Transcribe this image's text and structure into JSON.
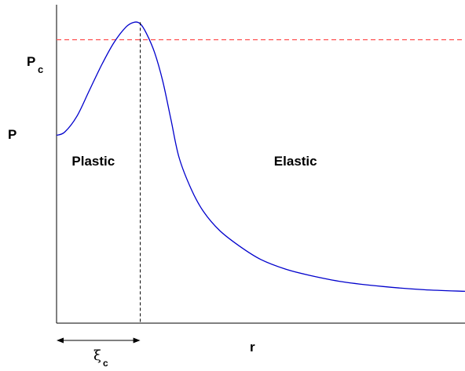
{
  "chart_data": {
    "type": "line",
    "xlabel": "r",
    "ylabel": "P",
    "xlim": [
      0,
      1
    ],
    "ylim": [
      0,
      1
    ],
    "grid": false,
    "series": [
      {
        "color": "#0000cc",
        "x": [
          0,
          0.02,
          0.05,
          0.08,
          0.11,
          0.14,
          0.17,
          0.19,
          0.205,
          0.22,
          0.24,
          0.26,
          0.28,
          0.3,
          0.33,
          0.36,
          0.4,
          0.45,
          0.5,
          0.56,
          0.62,
          0.7,
          0.8,
          0.9,
          1.0
        ],
        "y": [
          0.59,
          0.6,
          0.65,
          0.73,
          0.81,
          0.88,
          0.93,
          0.945,
          0.94,
          0.91,
          0.85,
          0.76,
          0.64,
          0.52,
          0.42,
          0.35,
          0.29,
          0.24,
          0.2,
          0.17,
          0.15,
          0.13,
          0.115,
          0.105,
          0.1
        ]
      }
    ],
    "threshold_line": {
      "label": "P",
      "label_sub": "c",
      "y": 0.89,
      "color": "#ff5555"
    },
    "peak_marker": {
      "x": 0.205,
      "color": "#000000"
    },
    "width_arrow": {
      "label": "ξ",
      "label_sub": "c",
      "x_start": 0,
      "x_end": 0.205
    },
    "region_labels": [
      {
        "text": "Plastic",
        "x": 0.095,
        "y": 0.51
      },
      {
        "text": "Elastic",
        "x": 0.59,
        "y": 0.51
      }
    ]
  }
}
